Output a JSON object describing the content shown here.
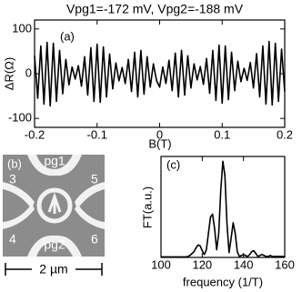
{
  "chart_data": [
    {
      "type": "line",
      "title": "Vpg1=-172 mV, Vpg2=-188 mV",
      "panel_label": "(a)",
      "x_label": "B(T)",
      "y_label": "ΔR(Ω)",
      "color": "#000000",
      "x": [
        -0.2,
        -0.195,
        -0.19,
        -0.185,
        -0.18,
        -0.175,
        -0.17,
        -0.165,
        -0.16,
        -0.155,
        -0.15,
        -0.145,
        -0.14,
        -0.135,
        -0.13,
        -0.125,
        -0.12,
        -0.115,
        -0.11,
        -0.105,
        -0.1,
        -0.095,
        -0.09,
        -0.085,
        -0.08,
        -0.075,
        -0.07,
        -0.065,
        -0.06,
        -0.055,
        -0.05,
        -0.045,
        -0.04,
        -0.035,
        -0.03,
        -0.025,
        -0.02,
        -0.015,
        -0.01,
        -0.005,
        0,
        0.005,
        0.01,
        0.015,
        0.02,
        0.025,
        0.03,
        0.035,
        0.04,
        0.045,
        0.05,
        0.055,
        0.06,
        0.065,
        0.07,
        0.075,
        0.08,
        0.085,
        0.09,
        0.095,
        0.1,
        0.105,
        0.11,
        0.115,
        0.12,
        0.125,
        0.13,
        0.135,
        0.14,
        0.145,
        0.15,
        0.155,
        0.16,
        0.165,
        0.17,
        0.175,
        0.18,
        0.185,
        0.19,
        0.195,
        0.2
      ],
      "values": [
        40,
        -55,
        62,
        -68,
        70,
        -72,
        68,
        -62,
        52,
        -45,
        32,
        -25,
        15,
        -12,
        18,
        -28,
        38,
        -48,
        58,
        -62,
        66,
        -64,
        60,
        -52,
        44,
        -34,
        24,
        -16,
        14,
        -22,
        32,
        -40,
        48,
        -52,
        52,
        -46,
        38,
        -30,
        22,
        -15,
        -30,
        15,
        -22,
        30,
        -38,
        46,
        -52,
        52,
        -48,
        40,
        -32,
        22,
        -14,
        16,
        -24,
        34,
        -44,
        52,
        -60,
        64,
        -66,
        62,
        -58,
        48,
        -38,
        28,
        -18,
        12,
        -15,
        25,
        -32,
        45,
        -52,
        62,
        -68,
        72,
        -70,
        68,
        -62,
        55,
        -40
      ],
      "xlim": [
        -0.2,
        0.2
      ],
      "xticks": [
        -0.2,
        -0.1,
        0,
        0.1,
        0.2
      ],
      "ylim": [
        -120,
        120
      ],
      "yticks": [
        -100,
        0,
        100
      ]
    },
    {
      "type": "image",
      "panel_label": "(b)",
      "labels": [
        "pg1",
        "pg2",
        "3",
        "4",
        "5",
        "6"
      ],
      "scale_bar": "2 µm"
    },
    {
      "type": "line",
      "panel_label": "(c)",
      "x_label": "frequency (1/T)",
      "y_label": "FT(a.u.)",
      "color": "#000000",
      "x": [
        100,
        101,
        102,
        103,
        104,
        105,
        106,
        107,
        108,
        109,
        110,
        111,
        112,
        113,
        114,
        115,
        116,
        117,
        118,
        119,
        120,
        121,
        122,
        123,
        124,
        125,
        126,
        127,
        128,
        129,
        130,
        131,
        132,
        133,
        134,
        135,
        136,
        137,
        138,
        139,
        140,
        141,
        142,
        143,
        144,
        145,
        146,
        147,
        148,
        149,
        150,
        151,
        152,
        153,
        154,
        155,
        156,
        157,
        158,
        159,
        160
      ],
      "values": [
        0.005,
        0.005,
        0.005,
        0.005,
        0.005,
        0.005,
        0.005,
        0.005,
        0.005,
        0.005,
        0.005,
        0.005,
        0.005,
        0.01,
        0.02,
        0.04,
        0.06,
        0.1,
        0.13,
        0.12,
        0.07,
        0.03,
        0.08,
        0.25,
        0.42,
        0.45,
        0.3,
        0.08,
        0.25,
        0.7,
        1.0,
        0.85,
        0.35,
        0.05,
        0.2,
        0.36,
        0.25,
        0.06,
        0.01,
        0.02,
        0.03,
        0.02,
        0.01,
        0.03,
        0.06,
        0.07,
        0.04,
        0.01,
        0.02,
        0.03,
        0.02,
        0.01,
        0.01,
        0.02,
        0.01,
        0.01,
        0.01,
        0.01,
        0.01,
        0.01,
        0.01
      ],
      "xlim": [
        100,
        160
      ],
      "xticks": [
        100,
        120,
        140,
        160
      ],
      "ylim": [
        0,
        1.05
      ]
    }
  ]
}
